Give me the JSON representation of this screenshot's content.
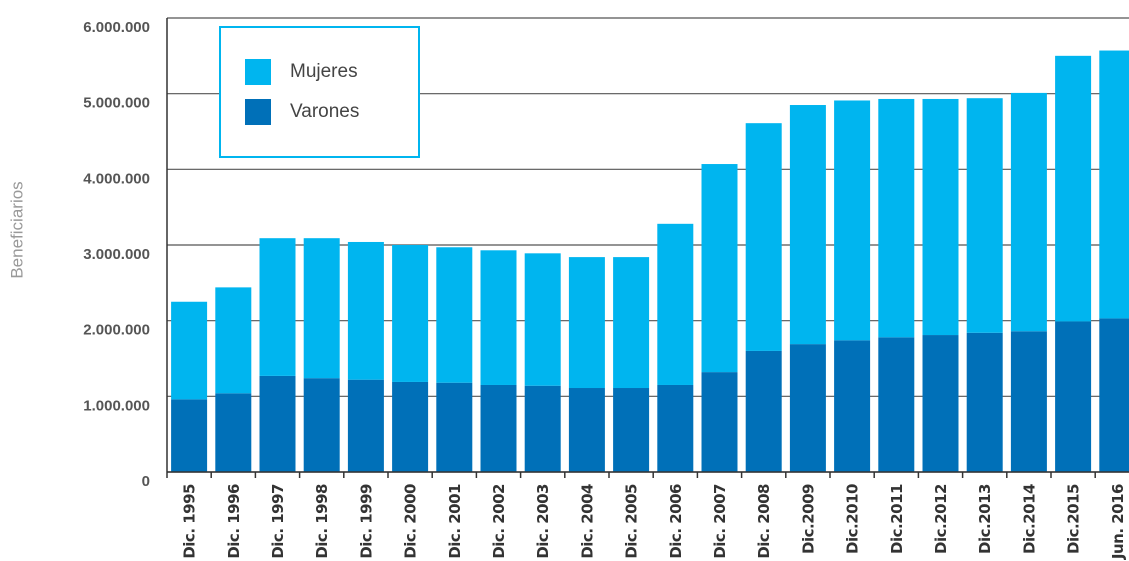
{
  "chart_data": {
    "type": "stacked_bar",
    "y_label": "Beneficiarios",
    "categories": [
      "Dic. 1995",
      "Dic. 1996",
      "Dic. 1997",
      "Dic. 1998",
      "Dic. 1999",
      "Dic. 2000",
      "Dic. 2001",
      "Dic. 2002",
      "Dic. 2003",
      "Dic. 2004",
      "Dic. 2005",
      "Dic. 2006",
      "Dic. 2007",
      "Dic. 2008",
      "Dic.2009",
      "Dic.2010",
      "Dic.2011",
      "Dic.2012",
      "Dic.2013",
      "Dic.2014",
      "Dic.2015",
      "Jun. 2016"
    ],
    "series": [
      {
        "name": "Varones",
        "color": "#0070b8",
        "values": [
          960000,
          1040000,
          1270000,
          1240000,
          1220000,
          1190000,
          1180000,
          1150000,
          1140000,
          1110000,
          1110000,
          1150000,
          1320000,
          1600000,
          1690000,
          1740000,
          1780000,
          1810000,
          1840000,
          1860000,
          1990000,
          2030000
        ]
      },
      {
        "name": "Mujeres",
        "color": "#00b5ef",
        "values": [
          1290000,
          1400000,
          1820000,
          1850000,
          1820000,
          1810000,
          1790000,
          1780000,
          1750000,
          1730000,
          1730000,
          2130000,
          2750000,
          3010000,
          3160000,
          3170000,
          3150000,
          3120000,
          3100000,
          3150000,
          3510000,
          3540000
        ]
      }
    ],
    "legend_order": [
      "Mujeres",
      "Varones"
    ],
    "ylim": [
      0,
      6000000
    ],
    "yticks": [
      0,
      {
        "value": 1000000,
        "label": "1.000.000"
      },
      {
        "value": 2000000,
        "label": "2.000.000"
      },
      {
        "value": 3000000,
        "label": "3.000.000"
      },
      {
        "value": 4000000,
        "label": "4.000.000"
      },
      {
        "value": 5000000,
        "label": "5.000.000"
      },
      {
        "value": 6000000,
        "label": "6.000.000"
      }
    ],
    "grid": true,
    "legend": "upper left"
  }
}
